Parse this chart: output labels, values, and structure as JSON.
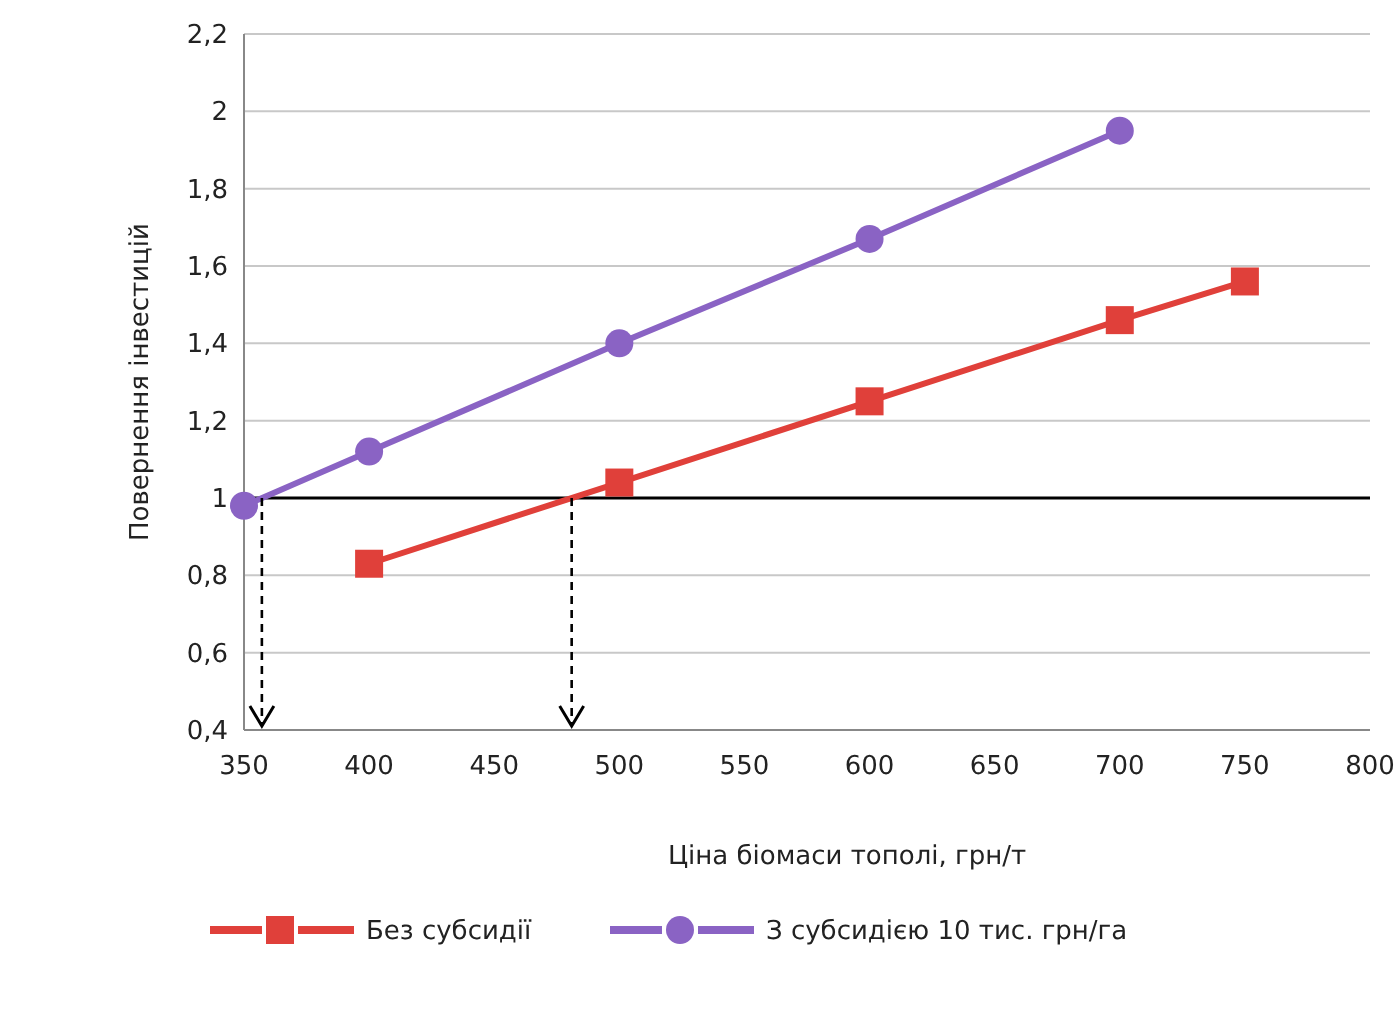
{
  "chart_data": {
    "type": "line",
    "xlabel": "Ціна біомаси тополі, грн/т",
    "ylabel": "Повернення інвестицій",
    "xlim": [
      350,
      800
    ],
    "xticks": [
      350,
      400,
      450,
      500,
      550,
      600,
      650,
      700,
      750,
      800
    ],
    "ylim": [
      0.4,
      2.2
    ],
    "yticks": [
      {
        "value": 0.4,
        "label": "0,4"
      },
      {
        "value": 0.6,
        "label": "0,6"
      },
      {
        "value": 0.8,
        "label": "0,8"
      },
      {
        "value": 1,
        "label": "1"
      },
      {
        "value": 1.2,
        "label": "1,2"
      },
      {
        "value": 1.4,
        "label": "1,4"
      },
      {
        "value": 1.6,
        "label": "1,6"
      },
      {
        "value": 1.8,
        "label": "1,8"
      },
      {
        "value": 2,
        "label": "2"
      },
      {
        "value": 2.2,
        "label": "2,2"
      }
    ],
    "grid": "y",
    "legend": "bottom",
    "line_style": "solid",
    "ref_lines": [
      {
        "axis": "y",
        "value": 1,
        "color": "#000000"
      }
    ],
    "series": [
      {
        "name": "Без субсидії",
        "color": "#e0403a",
        "marker": "square",
        "x": [
          400,
          500,
          600,
          700,
          750
        ],
        "values": [
          0.83,
          1.04,
          1.25,
          1.46,
          1.56
        ]
      },
      {
        "name": "З субсидією 10 тис. грн/га",
        "color": "#8a63c4",
        "marker": "circle",
        "x": [
          350,
          400,
          500,
          600,
          700
        ],
        "values": [
          0.98,
          1.12,
          1.4,
          1.67,
          1.95
        ]
      }
    ]
  }
}
